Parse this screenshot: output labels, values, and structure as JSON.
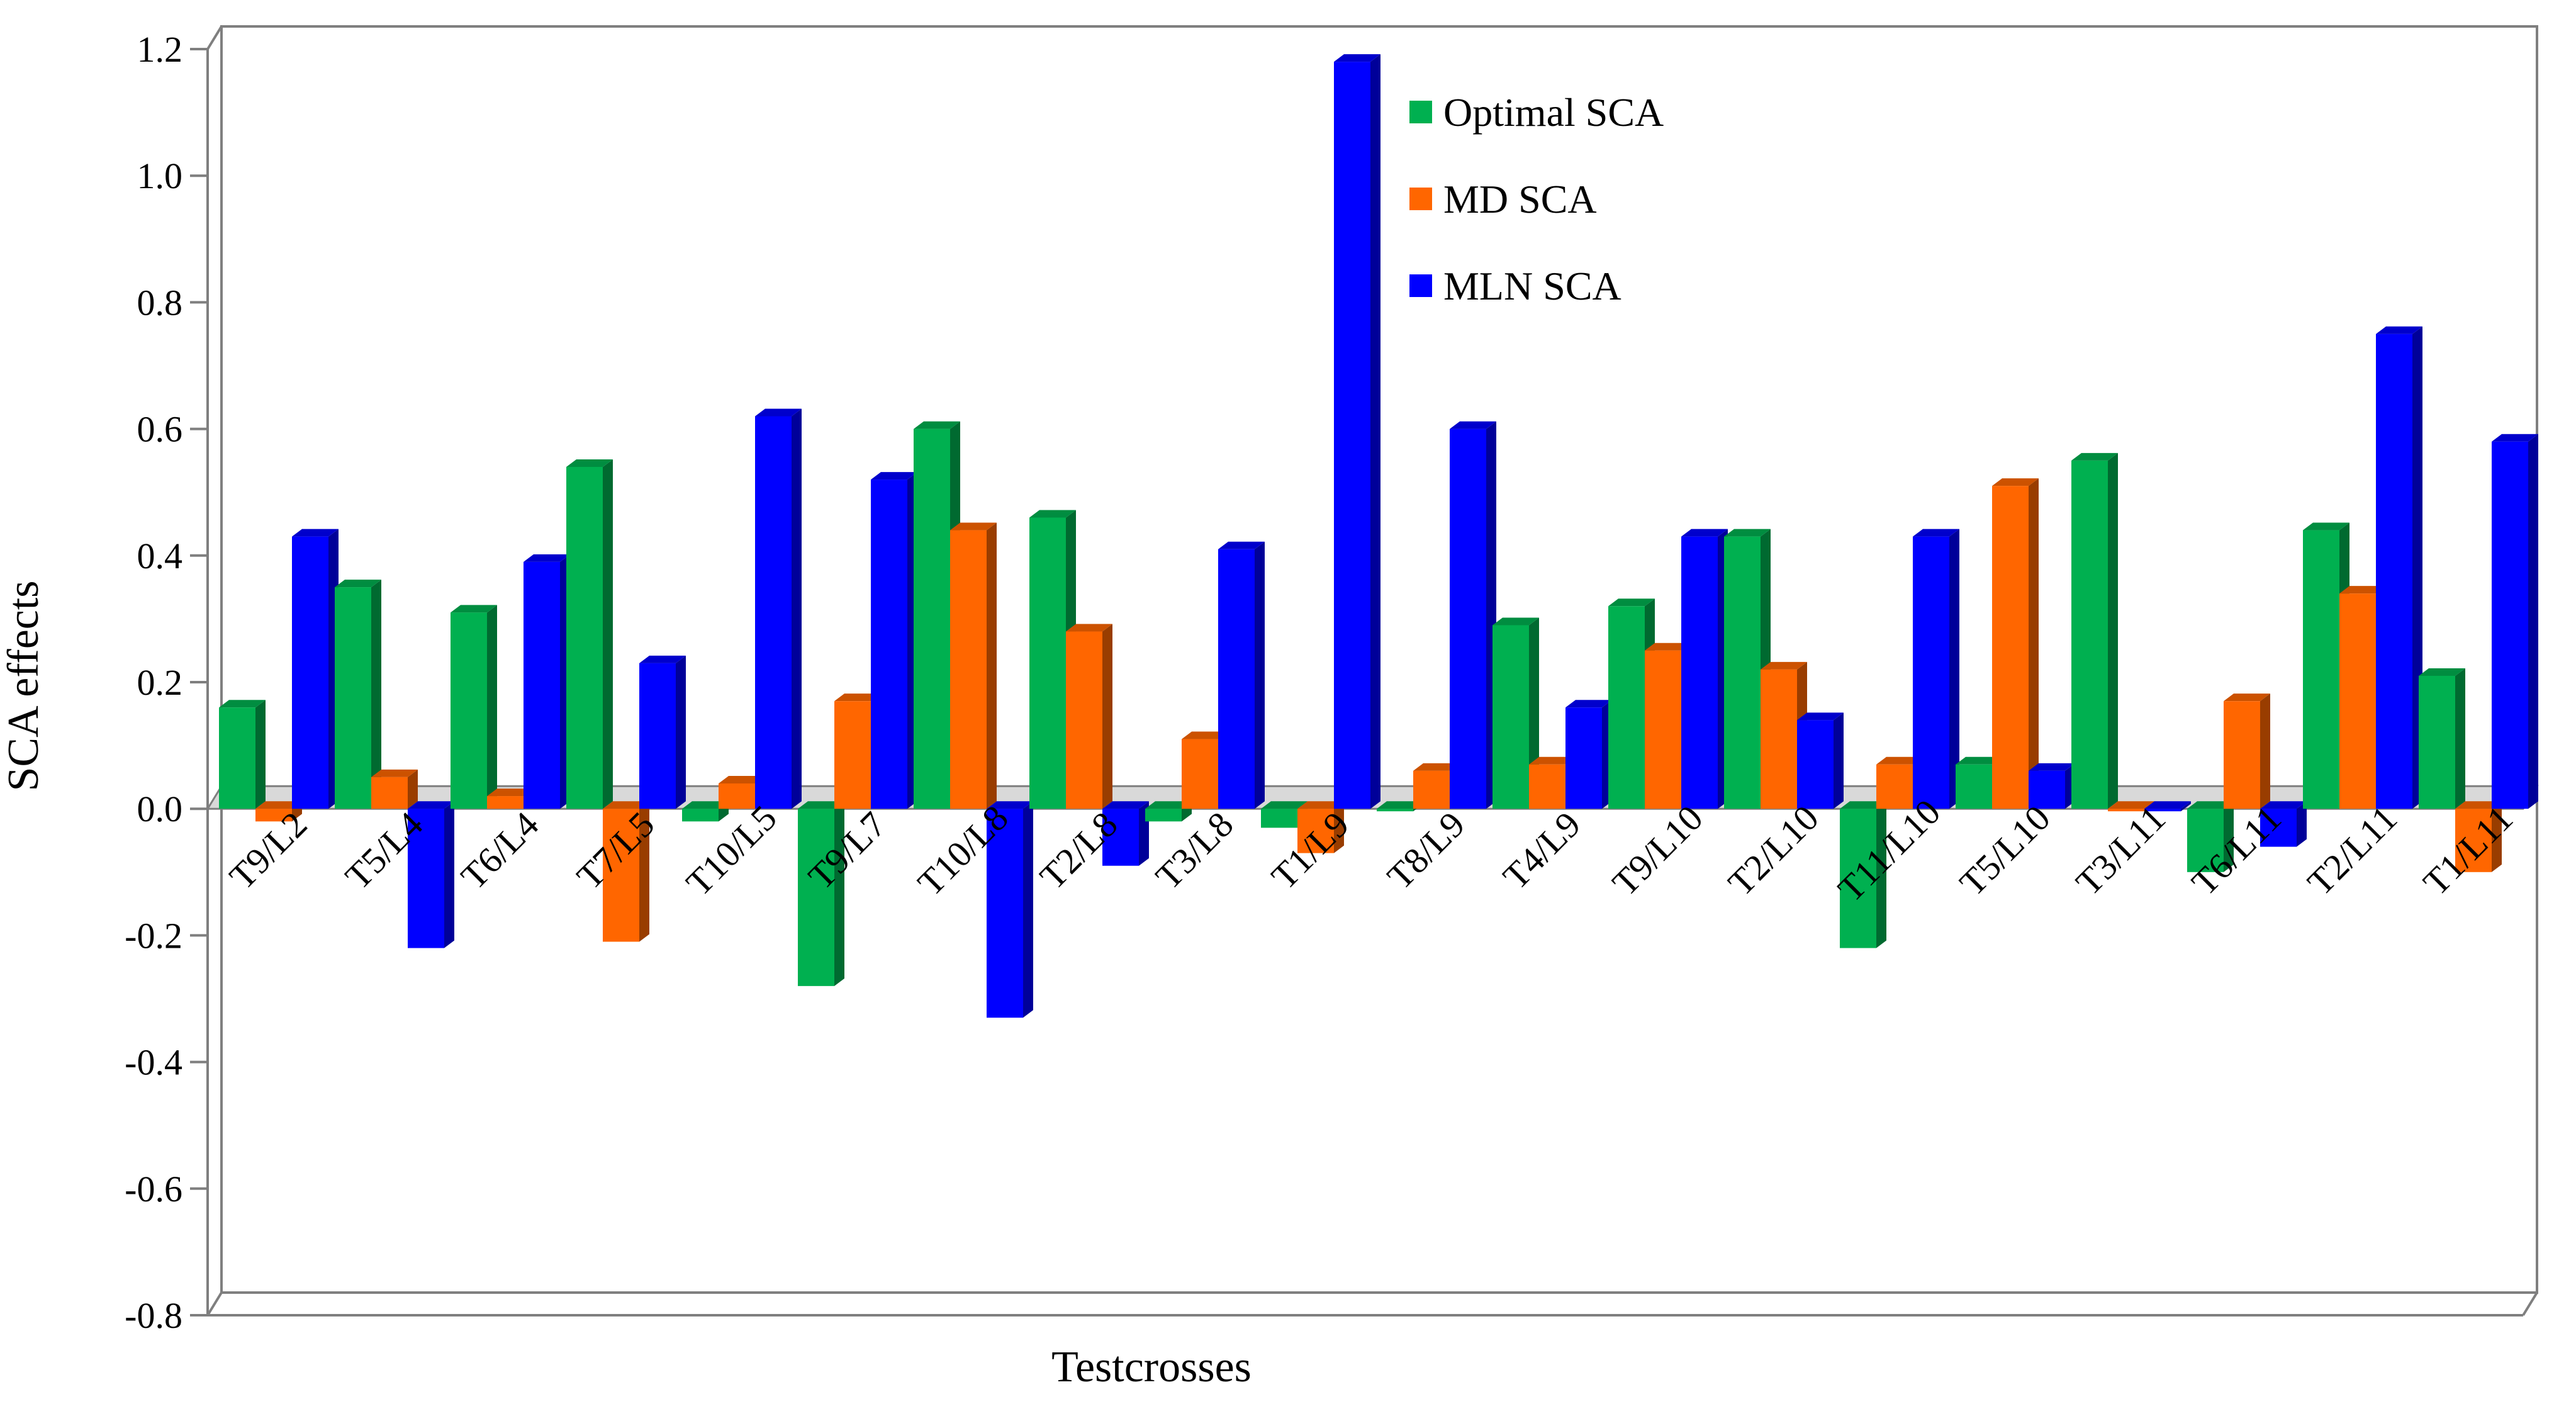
{
  "chart_data": {
    "type": "bar",
    "title": "",
    "xlabel": "Testcrosses",
    "ylabel": "SCA effects",
    "ylim": [
      -0.8,
      1.2
    ],
    "yticks": [
      1.2,
      1.0,
      0.8,
      0.6,
      0.4,
      0.2,
      0.0,
      -0.2,
      -0.4,
      -0.6,
      -0.8
    ],
    "ytick_labels": [
      "1.2",
      "1.0",
      "0.8",
      "0.6",
      "0.4",
      "0.2",
      "0.0",
      "-0.2",
      "-0.4",
      "-0.6",
      "-0.8"
    ],
    "legend_position": "top-center",
    "categories": [
      "T9/L2",
      "T5/L4",
      "T6/L4",
      "T7/L5",
      "T10/L5",
      "T9/L7",
      "T10/L8",
      "T2/L8",
      "T3/L8",
      "T1/L9",
      "T8/L9",
      "T4/L9",
      "T9/L10",
      "T2/L10",
      "T11/L10",
      "T5/L10",
      "T3/L11",
      "T6/L11",
      "T2/L11",
      "T1/L11"
    ],
    "series": [
      {
        "name": "Optimal SCA",
        "color": "#00b050",
        "values": [
          0.16,
          0.35,
          0.31,
          0.54,
          -0.02,
          -0.28,
          0.6,
          0.46,
          -0.02,
          -0.03,
          0.0,
          0.29,
          0.32,
          0.43,
          -0.22,
          0.07,
          0.55,
          -0.1,
          0.44,
          0.21
        ]
      },
      {
        "name": "MD SCA",
        "color": "#ff6600",
        "values": [
          -0.02,
          0.05,
          0.02,
          -0.21,
          0.04,
          0.17,
          0.44,
          0.28,
          0.11,
          -0.07,
          0.06,
          0.07,
          0.25,
          0.22,
          0.07,
          0.51,
          0.0,
          0.17,
          0.34,
          -0.1
        ]
      },
      {
        "name": "MLN SCA",
        "color": "#0000ff",
        "values": [
          0.43,
          -0.22,
          0.39,
          0.23,
          0.62,
          0.52,
          -0.33,
          -0.09,
          0.41,
          1.18,
          0.6,
          0.16,
          0.43,
          0.14,
          0.43,
          0.06,
          0.0,
          -0.06,
          0.75,
          0.58
        ]
      }
    ]
  }
}
